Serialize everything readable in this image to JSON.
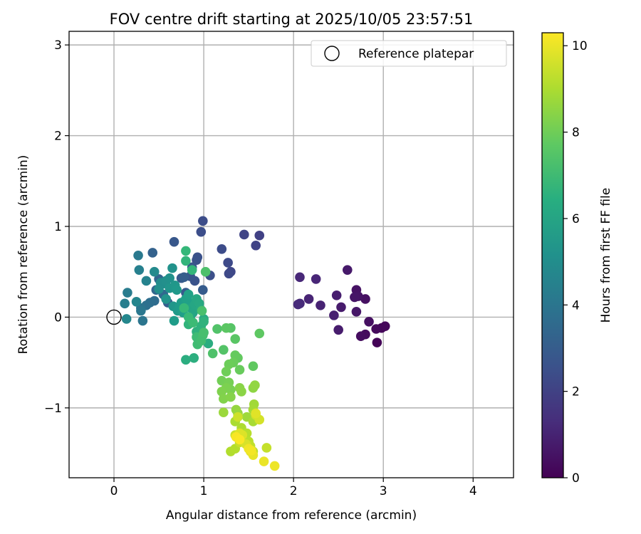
{
  "chart_data": {
    "type": "scatter",
    "title": "FOV centre drift starting at 2025/10/05 23:57:51",
    "xlabel": "Angular distance from reference (arcmin)",
    "ylabel": "Rotation from reference (arcmin)",
    "xlim": [
      -0.5,
      4.45
    ],
    "ylim": [
      -1.77,
      3.15
    ],
    "xticks": [
      0,
      1,
      2,
      3,
      4
    ],
    "xtick_labels": [
      "0",
      "1",
      "2",
      "3",
      "4"
    ],
    "yticks": [
      -1,
      0,
      1,
      2,
      3
    ],
    "ytick_labels": [
      "−1",
      "0",
      "1",
      "2",
      "3"
    ],
    "grid": true,
    "legend": {
      "location": "top-right",
      "entries": [
        {
          "label": "Reference platepar",
          "marker": "open-circle"
        }
      ]
    },
    "reference_point": {
      "x": 0,
      "y": 0
    },
    "colorbar": {
      "label": "Hours from first FF file",
      "range": [
        0,
        10.3
      ],
      "ticks": [
        0,
        2,
        4,
        6,
        8,
        10
      ],
      "tick_labels": [
        "0",
        "2",
        "4",
        "6",
        "8",
        "10"
      ],
      "colormap": "viridis"
    },
    "series": [
      {
        "name": "FOV centre drift",
        "points": [
          [
            2.93,
            -0.28,
            0.1
          ],
          [
            2.98,
            -0.12,
            0.15
          ],
          [
            3.02,
            -0.1,
            0.2
          ],
          [
            2.92,
            -0.13,
            0.25
          ],
          [
            2.8,
            -0.19,
            0.3
          ],
          [
            2.75,
            -0.21,
            0.35
          ],
          [
            2.84,
            -0.05,
            0.4
          ],
          [
            2.8,
            0.2,
            0.45
          ],
          [
            2.7,
            0.3,
            0.5
          ],
          [
            2.72,
            0.23,
            0.55
          ],
          [
            2.68,
            0.22,
            0.6
          ],
          [
            2.7,
            0.06,
            0.65
          ],
          [
            2.6,
            0.52,
            0.7
          ],
          [
            2.53,
            0.11,
            0.75
          ],
          [
            2.5,
            -0.14,
            0.8
          ],
          [
            2.48,
            0.24,
            0.85
          ],
          [
            2.45,
            0.02,
            0.9
          ],
          [
            2.3,
            0.13,
            1.0
          ],
          [
            2.17,
            0.2,
            1.05
          ],
          [
            2.25,
            0.42,
            1.1
          ],
          [
            2.07,
            0.44,
            1.15
          ],
          [
            2.07,
            0.15,
            1.2
          ],
          [
            2.05,
            0.14,
            1.25
          ],
          [
            1.62,
            0.9,
            2.0
          ],
          [
            1.58,
            0.79,
            2.05
          ],
          [
            1.45,
            0.91,
            2.1
          ],
          [
            1.3,
            0.5,
            2.2
          ],
          [
            1.28,
            0.48,
            2.25
          ],
          [
            1.27,
            0.6,
            2.3
          ],
          [
            1.2,
            0.75,
            2.35
          ],
          [
            0.99,
            1.06,
            2.4
          ],
          [
            0.97,
            0.94,
            2.45
          ],
          [
            1.07,
            0.46,
            2.5
          ],
          [
            0.93,
            0.66,
            2.55
          ],
          [
            0.92,
            0.63,
            2.6
          ],
          [
            0.9,
            0.4,
            2.65
          ],
          [
            0.85,
            0.45,
            2.7
          ],
          [
            0.87,
            0.55,
            2.75
          ],
          [
            0.67,
            0.83,
            2.8
          ],
          [
            0.75,
            0.43,
            2.85
          ],
          [
            0.8,
            0.27,
            2.9
          ],
          [
            0.99,
            0.3,
            2.95
          ],
          [
            0.78,
            0.44,
            3.0
          ],
          [
            0.6,
            0.16,
            3.1
          ],
          [
            0.43,
            0.71,
            3.2
          ],
          [
            0.5,
            0.42,
            3.3
          ],
          [
            0.47,
            0.3,
            3.4
          ],
          [
            0.55,
            0.25,
            3.5
          ],
          [
            0.45,
            0.18,
            3.6
          ],
          [
            0.4,
            0.16,
            3.7
          ],
          [
            0.36,
            0.13,
            3.8
          ],
          [
            0.3,
            0.1,
            3.9
          ],
          [
            0.32,
            -0.04,
            4.0
          ],
          [
            0.3,
            0.07,
            4.1
          ],
          [
            0.27,
            0.68,
            4.2
          ],
          [
            0.15,
            0.27,
            4.3
          ],
          [
            0.12,
            0.15,
            4.4
          ],
          [
            0.28,
            0.52,
            4.5
          ],
          [
            0.36,
            0.4,
            4.6
          ],
          [
            0.25,
            0.17,
            4.7
          ],
          [
            0.14,
            -0.02,
            4.8
          ],
          [
            0.45,
            0.5,
            4.9
          ],
          [
            0.52,
            0.38,
            5.0
          ],
          [
            0.55,
            0.37,
            5.05
          ],
          [
            0.5,
            0.31,
            5.1
          ],
          [
            0.58,
            0.4,
            5.15
          ],
          [
            0.62,
            0.43,
            5.2
          ],
          [
            0.65,
            0.54,
            5.25
          ],
          [
            0.58,
            0.2,
            5.3
          ],
          [
            0.62,
            0.32,
            5.35
          ],
          [
            0.66,
            0.12,
            5.4
          ],
          [
            0.68,
            0.35,
            5.45
          ],
          [
            0.7,
            0.3,
            5.5
          ],
          [
            0.71,
            0.07,
            5.55
          ],
          [
            0.73,
            0.12,
            5.6
          ],
          [
            0.67,
            -0.04,
            5.65
          ],
          [
            0.75,
            0.16,
            5.7
          ],
          [
            0.77,
            0.05,
            5.75
          ],
          [
            0.8,
            0.2,
            5.8
          ],
          [
            0.82,
            0.18,
            5.85
          ],
          [
            0.83,
            0.25,
            5.9
          ],
          [
            0.85,
            0.0,
            5.95
          ],
          [
            0.86,
            0.1,
            6.0
          ],
          [
            0.88,
            0.05,
            6.05
          ],
          [
            0.9,
            0.14,
            6.1
          ],
          [
            0.92,
            0.2,
            6.15
          ],
          [
            0.95,
            0.15,
            6.2
          ],
          [
            0.97,
            0.08,
            6.25
          ],
          [
            1.0,
            -0.02,
            6.3
          ],
          [
            1.05,
            -0.29,
            6.35
          ],
          [
            0.8,
            -0.47,
            6.4
          ],
          [
            0.89,
            -0.45,
            6.45
          ],
          [
            0.95,
            -0.22,
            6.5
          ],
          [
            0.92,
            -0.16,
            6.55
          ],
          [
            0.97,
            -0.1,
            6.6
          ],
          [
            1.0,
            -0.05,
            6.65
          ],
          [
            0.83,
            -0.08,
            6.7
          ],
          [
            0.8,
            0.62,
            6.75
          ],
          [
            0.87,
            0.52,
            6.8
          ],
          [
            0.8,
            0.73,
            6.85
          ],
          [
            0.78,
            0.1,
            6.9
          ],
          [
            0.83,
            0.0,
            6.95
          ],
          [
            0.88,
            -0.06,
            7.0
          ],
          [
            0.92,
            -0.22,
            7.05
          ],
          [
            0.93,
            -0.3,
            7.1
          ],
          [
            0.97,
            -0.26,
            7.15
          ],
          [
            0.99,
            -0.2,
            7.2
          ],
          [
            1.0,
            -0.17,
            7.25
          ],
          [
            0.98,
            0.07,
            7.3
          ],
          [
            1.02,
            0.5,
            7.35
          ],
          [
            1.1,
            -0.4,
            7.4
          ],
          [
            1.15,
            -0.13,
            7.45
          ],
          [
            1.22,
            -0.36,
            7.5
          ],
          [
            1.3,
            -0.12,
            7.55
          ],
          [
            1.35,
            -0.24,
            7.6
          ],
          [
            1.25,
            -0.12,
            7.65
          ],
          [
            1.62,
            -0.18,
            7.7
          ],
          [
            1.55,
            -0.54,
            7.75
          ],
          [
            1.38,
            -0.45,
            7.8
          ],
          [
            1.35,
            -0.42,
            7.85
          ],
          [
            1.4,
            -0.58,
            7.9
          ],
          [
            1.33,
            -0.5,
            7.95
          ],
          [
            1.28,
            -0.52,
            8.0
          ],
          [
            1.25,
            -0.6,
            8.05
          ],
          [
            1.2,
            -0.7,
            8.1
          ],
          [
            1.28,
            -0.72,
            8.15
          ],
          [
            1.3,
            -0.8,
            8.2
          ],
          [
            1.25,
            -0.78,
            8.25
          ],
          [
            1.2,
            -0.82,
            8.3
          ],
          [
            1.22,
            -0.9,
            8.35
          ],
          [
            1.3,
            -0.88,
            8.4
          ],
          [
            1.4,
            -0.78,
            8.45
          ],
          [
            1.42,
            -0.82,
            8.5
          ],
          [
            1.55,
            -0.78,
            8.55
          ],
          [
            1.57,
            -0.75,
            8.6
          ],
          [
            1.36,
            -1.02,
            8.65
          ],
          [
            1.38,
            -1.06,
            8.7
          ],
          [
            1.22,
            -1.05,
            8.75
          ],
          [
            1.48,
            -1.1,
            8.8
          ],
          [
            1.56,
            -0.96,
            8.85
          ],
          [
            1.55,
            -1.02,
            8.9
          ],
          [
            1.55,
            -1.15,
            8.95
          ],
          [
            1.35,
            -1.15,
            9.0
          ],
          [
            1.42,
            -1.22,
            9.05
          ],
          [
            1.3,
            -1.48,
            9.1
          ],
          [
            1.35,
            -1.45,
            9.15
          ],
          [
            1.48,
            -1.28,
            9.2
          ],
          [
            1.5,
            -1.37,
            9.25
          ],
          [
            1.55,
            -1.48,
            9.3
          ],
          [
            1.52,
            -1.42,
            9.35
          ],
          [
            1.7,
            -1.44,
            9.4
          ],
          [
            1.4,
            -1.38,
            9.45
          ],
          [
            1.35,
            -1.3,
            9.5
          ],
          [
            1.38,
            -1.1,
            9.55
          ],
          [
            1.58,
            -1.08,
            9.6
          ],
          [
            1.62,
            -1.13,
            9.65
          ],
          [
            1.47,
            -1.4,
            9.7
          ],
          [
            1.43,
            -1.3,
            9.75
          ],
          [
            1.4,
            -1.28,
            9.8
          ],
          [
            1.58,
            -1.06,
            9.85
          ],
          [
            1.52,
            -1.48,
            9.9
          ],
          [
            1.55,
            -1.52,
            9.95
          ],
          [
            1.67,
            -1.59,
            10.0
          ],
          [
            1.79,
            -1.64,
            10.05
          ],
          [
            1.5,
            -1.45,
            10.1
          ],
          [
            1.53,
            -1.47,
            10.15
          ],
          [
            1.36,
            -1.32,
            10.2
          ],
          [
            1.4,
            -1.35,
            10.25
          ]
        ]
      }
    ]
  }
}
